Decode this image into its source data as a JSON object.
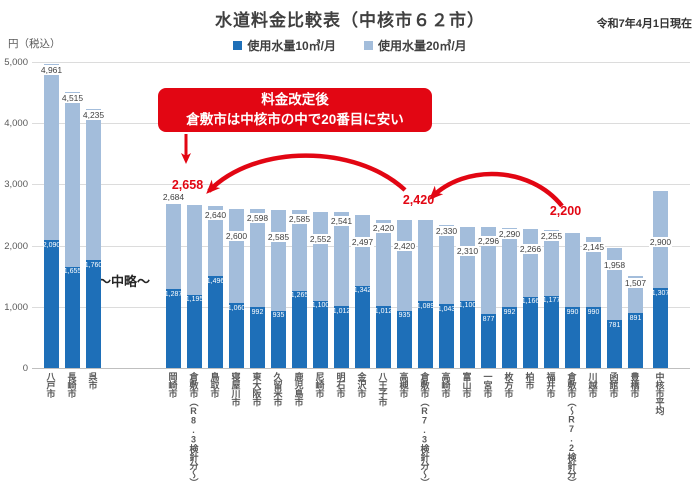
{
  "title": "水道料金比較表（中核市６２市）",
  "date_note": "令和7年4月1日現在",
  "y_axis": {
    "unit_label": "円（税込）",
    "ticks": [
      "5,000",
      "4,000",
      "3,000",
      "2,000",
      "1,000",
      "0"
    ],
    "max": 5000,
    "min": 0
  },
  "legend": [
    {
      "label": "使用水量10㎥/月",
      "color": "#1e6fb8"
    },
    {
      "label": "使用水量20㎥/月",
      "color": "#a3bddb"
    }
  ],
  "callout": {
    "line1": "料金改定後",
    "line2": "倉敷市は中核市の中で20番目に安い"
  },
  "ellipsis_label": "～中略～",
  "colors": {
    "bar_10m3": "#1e6fb8",
    "bar_20m3": "#a3bddb",
    "accent_red": "#e20613",
    "grid": "#dcdcdc",
    "text": "#404040"
  },
  "chart_data": {
    "type": "bar",
    "stacked": true,
    "series_names": [
      "使用水量10㎥/月",
      "使用水量20㎥/月"
    ],
    "note": "total = 20m3/月 rate incl. tax; v10 = 10m3/月 rate shown inside dark segment",
    "ylim": [
      0,
      5000
    ],
    "grid": true,
    "legend_position": "top-center",
    "bars": [
      {
        "city": "八戸市",
        "total": 4961,
        "v10": 2090,
        "group": "left",
        "dy": 2
      },
      {
        "city": "長崎市",
        "total": 4515,
        "v10": 1655,
        "group": "left",
        "dy": 2
      },
      {
        "city": "呉市",
        "total": 4235,
        "v10": 1760,
        "group": "left",
        "dy": 2
      },
      {
        "city": "岡崎市",
        "total": 2684,
        "v10": 1287,
        "group": "main",
        "dy": -11
      },
      {
        "city": "倉敷市（R8.3検針分～）",
        "total": 2658,
        "v10": 1195,
        "group": "main",
        "highlight": true,
        "dy": -26
      },
      {
        "city": "鳥取市",
        "total": 2640,
        "v10": 1496,
        "group": "main",
        "dy": 5
      },
      {
        "city": "寝屋川市",
        "total": 2600,
        "v10": 1060,
        "group": "main",
        "dy": 23
      },
      {
        "city": "東大阪市",
        "total": 2598,
        "v10": 992,
        "group": "main",
        "dy": 5
      },
      {
        "city": "久留米市",
        "total": 2585,
        "v10": 935,
        "group": "main",
        "dy": 23
      },
      {
        "city": "鹿児島市",
        "total": 2585,
        "v10": 1265,
        "group": "main",
        "dy": 5
      },
      {
        "city": "尼崎市",
        "total": 2552,
        "v10": 1100,
        "group": "main",
        "dy": 23
      },
      {
        "city": "明石市",
        "total": 2541,
        "v10": 1012,
        "group": "main",
        "dy": 5
      },
      {
        "city": "金沢市",
        "total": 2497,
        "v10": 1342,
        "group": "main",
        "dy": 23
      },
      {
        "city": "八王子市",
        "total": 2420,
        "v10": 1012,
        "group": "main",
        "dy": 4
      },
      {
        "city": "高槻市",
        "total": 2420,
        "v10": 935,
        "group": "main",
        "dy": 22
      },
      {
        "city": "倉敷市（R7.3検針分～）",
        "total": 2420,
        "v10": 1089,
        "group": "main",
        "highlight": true,
        "dy": -26
      },
      {
        "city": "高崎市",
        "total": 2330,
        "v10": 1043,
        "group": "main",
        "dy": 2
      },
      {
        "city": "富山市",
        "total": 2310,
        "v10": 1100,
        "group": "main",
        "dy": 20
      },
      {
        "city": "一宮市",
        "total": 2296,
        "v10": 877,
        "group": "main",
        "dy": 10
      },
      {
        "city": "枚方市",
        "total": 2290,
        "v10": 992,
        "group": "main",
        "dy": 2
      },
      {
        "city": "柏市",
        "total": 2266,
        "v10": 1166,
        "group": "main",
        "dy": 16
      },
      {
        "city": "福井市",
        "total": 2255,
        "v10": 1177,
        "group": "main",
        "dy": 2
      },
      {
        "city": "倉敷市（～R7.2検針分）",
        "total": 2200,
        "v10": 990,
        "group": "main",
        "highlight": true,
        "dy": -28
      },
      {
        "city": "川越市",
        "total": 2145,
        "v10": 990,
        "group": "main",
        "dy": 6
      },
      {
        "city": "函館市",
        "total": 1958,
        "v10": 781,
        "group": "main",
        "dy": 13
      },
      {
        "city": "豊橋市",
        "total": 1507,
        "v10": 891,
        "group": "main",
        "dy": 3
      },
      {
        "city": "中核市平均",
        "total": 2900,
        "v10": 1307,
        "group": "avg",
        "dy": 47
      }
    ]
  }
}
